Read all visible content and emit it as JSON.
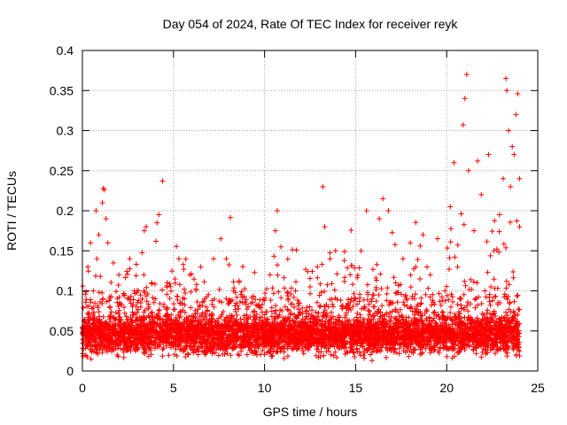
{
  "chart_data": {
    "type": "scatter",
    "title": "Day 054 of 2024, Rate Of TEC Index for receiver reyk",
    "xlabel": "GPS time / hours",
    "ylabel": "ROTI / TECUs",
    "xlim": [
      0,
      25
    ],
    "ylim": [
      0,
      0.4
    ],
    "x_ticks": [
      {
        "value": 0,
        "label": "0"
      },
      {
        "value": 5,
        "label": "5"
      },
      {
        "value": 10,
        "label": "10"
      },
      {
        "value": 15,
        "label": "15"
      },
      {
        "value": 20,
        "label": "20"
      },
      {
        "value": 25,
        "label": "25"
      }
    ],
    "y_ticks": [
      {
        "value": 0,
        "label": "0"
      },
      {
        "value": 0.05,
        "label": "0.05"
      },
      {
        "value": 0.1,
        "label": "0.1"
      },
      {
        "value": 0.15,
        "label": "0.15"
      },
      {
        "value": 0.2,
        "label": "0.2"
      },
      {
        "value": 0.25,
        "label": "0.25"
      },
      {
        "value": 0.3,
        "label": "0.3"
      },
      {
        "value": 0.35,
        "label": "0.35"
      },
      {
        "value": 0.4,
        "label": "0.4"
      }
    ],
    "grid": true,
    "marker": "+",
    "series": [
      {
        "name": "ROTI",
        "color": "#ff0000",
        "points": [
          [
            0.15,
            0.045
          ],
          [
            0.3,
            0.13
          ],
          [
            0.45,
            0.16
          ],
          [
            0.6,
            0.1
          ],
          [
            0.75,
            0.2
          ],
          [
            0.8,
            0.14
          ],
          [
            0.9,
            0.17
          ],
          [
            1.0,
            0.06
          ],
          [
            1.1,
            0.21
          ],
          [
            1.15,
            0.228
          ],
          [
            1.2,
            0.226
          ],
          [
            1.3,
            0.19
          ],
          [
            1.4,
            0.16
          ],
          [
            1.5,
            0.08
          ],
          [
            1.7,
            0.135
          ],
          [
            2.0,
            0.12
          ],
          [
            2.3,
            0.095
          ],
          [
            2.6,
            0.14
          ],
          [
            3.0,
            0.1
          ],
          [
            3.4,
            0.175
          ],
          [
            3.5,
            0.18
          ],
          [
            3.8,
            0.11
          ],
          [
            4.0,
            0.09
          ],
          [
            4.1,
            0.185
          ],
          [
            4.2,
            0.195
          ],
          [
            4.4,
            0.237
          ],
          [
            4.7,
            0.07
          ],
          [
            5.0,
            0.06
          ],
          [
            5.3,
            0.14
          ],
          [
            5.6,
            0.09
          ],
          [
            5.9,
            0.12
          ],
          [
            6.2,
            0.055
          ],
          [
            6.5,
            0.13
          ],
          [
            6.8,
            0.08
          ],
          [
            7.2,
            0.14
          ],
          [
            7.6,
            0.165
          ],
          [
            7.9,
            0.14
          ],
          [
            8.3,
            0.1
          ],
          [
            8.7,
            0.055
          ],
          [
            9.1,
            0.08
          ],
          [
            9.5,
            0.065
          ],
          [
            9.9,
            0.06
          ],
          [
            10.3,
            0.12
          ],
          [
            10.6,
            0.175
          ],
          [
            10.7,
            0.2
          ],
          [
            10.9,
            0.155
          ],
          [
            11.3,
            0.09
          ],
          [
            11.7,
            0.1
          ],
          [
            12.1,
            0.065
          ],
          [
            12.5,
            0.105
          ],
          [
            12.9,
            0.13
          ],
          [
            13.2,
            0.23
          ],
          [
            13.3,
            0.18
          ],
          [
            13.6,
            0.14
          ],
          [
            13.9,
            0.15
          ],
          [
            14.3,
            0.08
          ],
          [
            14.7,
            0.12
          ],
          [
            15.0,
            0.09
          ],
          [
            15.3,
            0.15
          ],
          [
            15.6,
            0.2
          ],
          [
            15.9,
            0.09
          ],
          [
            16.3,
            0.19
          ],
          [
            16.5,
            0.215
          ],
          [
            16.8,
            0.2
          ],
          [
            17.2,
            0.11
          ],
          [
            17.6,
            0.14
          ],
          [
            18.0,
            0.16
          ],
          [
            18.3,
            0.13
          ],
          [
            18.7,
            0.17
          ],
          [
            19.1,
            0.12
          ],
          [
            19.5,
            0.165
          ],
          [
            19.9,
            0.1
          ],
          [
            20.2,
            0.205
          ],
          [
            20.4,
            0.26
          ],
          [
            20.6,
            0.13
          ],
          [
            20.9,
            0.307
          ],
          [
            21.0,
            0.34
          ],
          [
            21.1,
            0.37
          ],
          [
            21.2,
            0.25
          ],
          [
            21.5,
            0.175
          ],
          [
            21.7,
            0.262
          ],
          [
            21.9,
            0.22
          ],
          [
            22.1,
            0.1
          ],
          [
            22.3,
            0.27
          ],
          [
            22.6,
            0.15
          ],
          [
            22.9,
            0.195
          ],
          [
            23.1,
            0.24
          ],
          [
            23.25,
            0.365
          ],
          [
            23.3,
            0.35
          ],
          [
            23.4,
            0.3
          ],
          [
            23.5,
            0.23
          ],
          [
            23.6,
            0.28
          ],
          [
            23.7,
            0.27
          ],
          [
            23.8,
            0.32
          ],
          [
            23.9,
            0.346
          ],
          [
            24.0,
            0.24
          ],
          [
            24.0,
            0.18
          ]
        ]
      }
    ]
  }
}
